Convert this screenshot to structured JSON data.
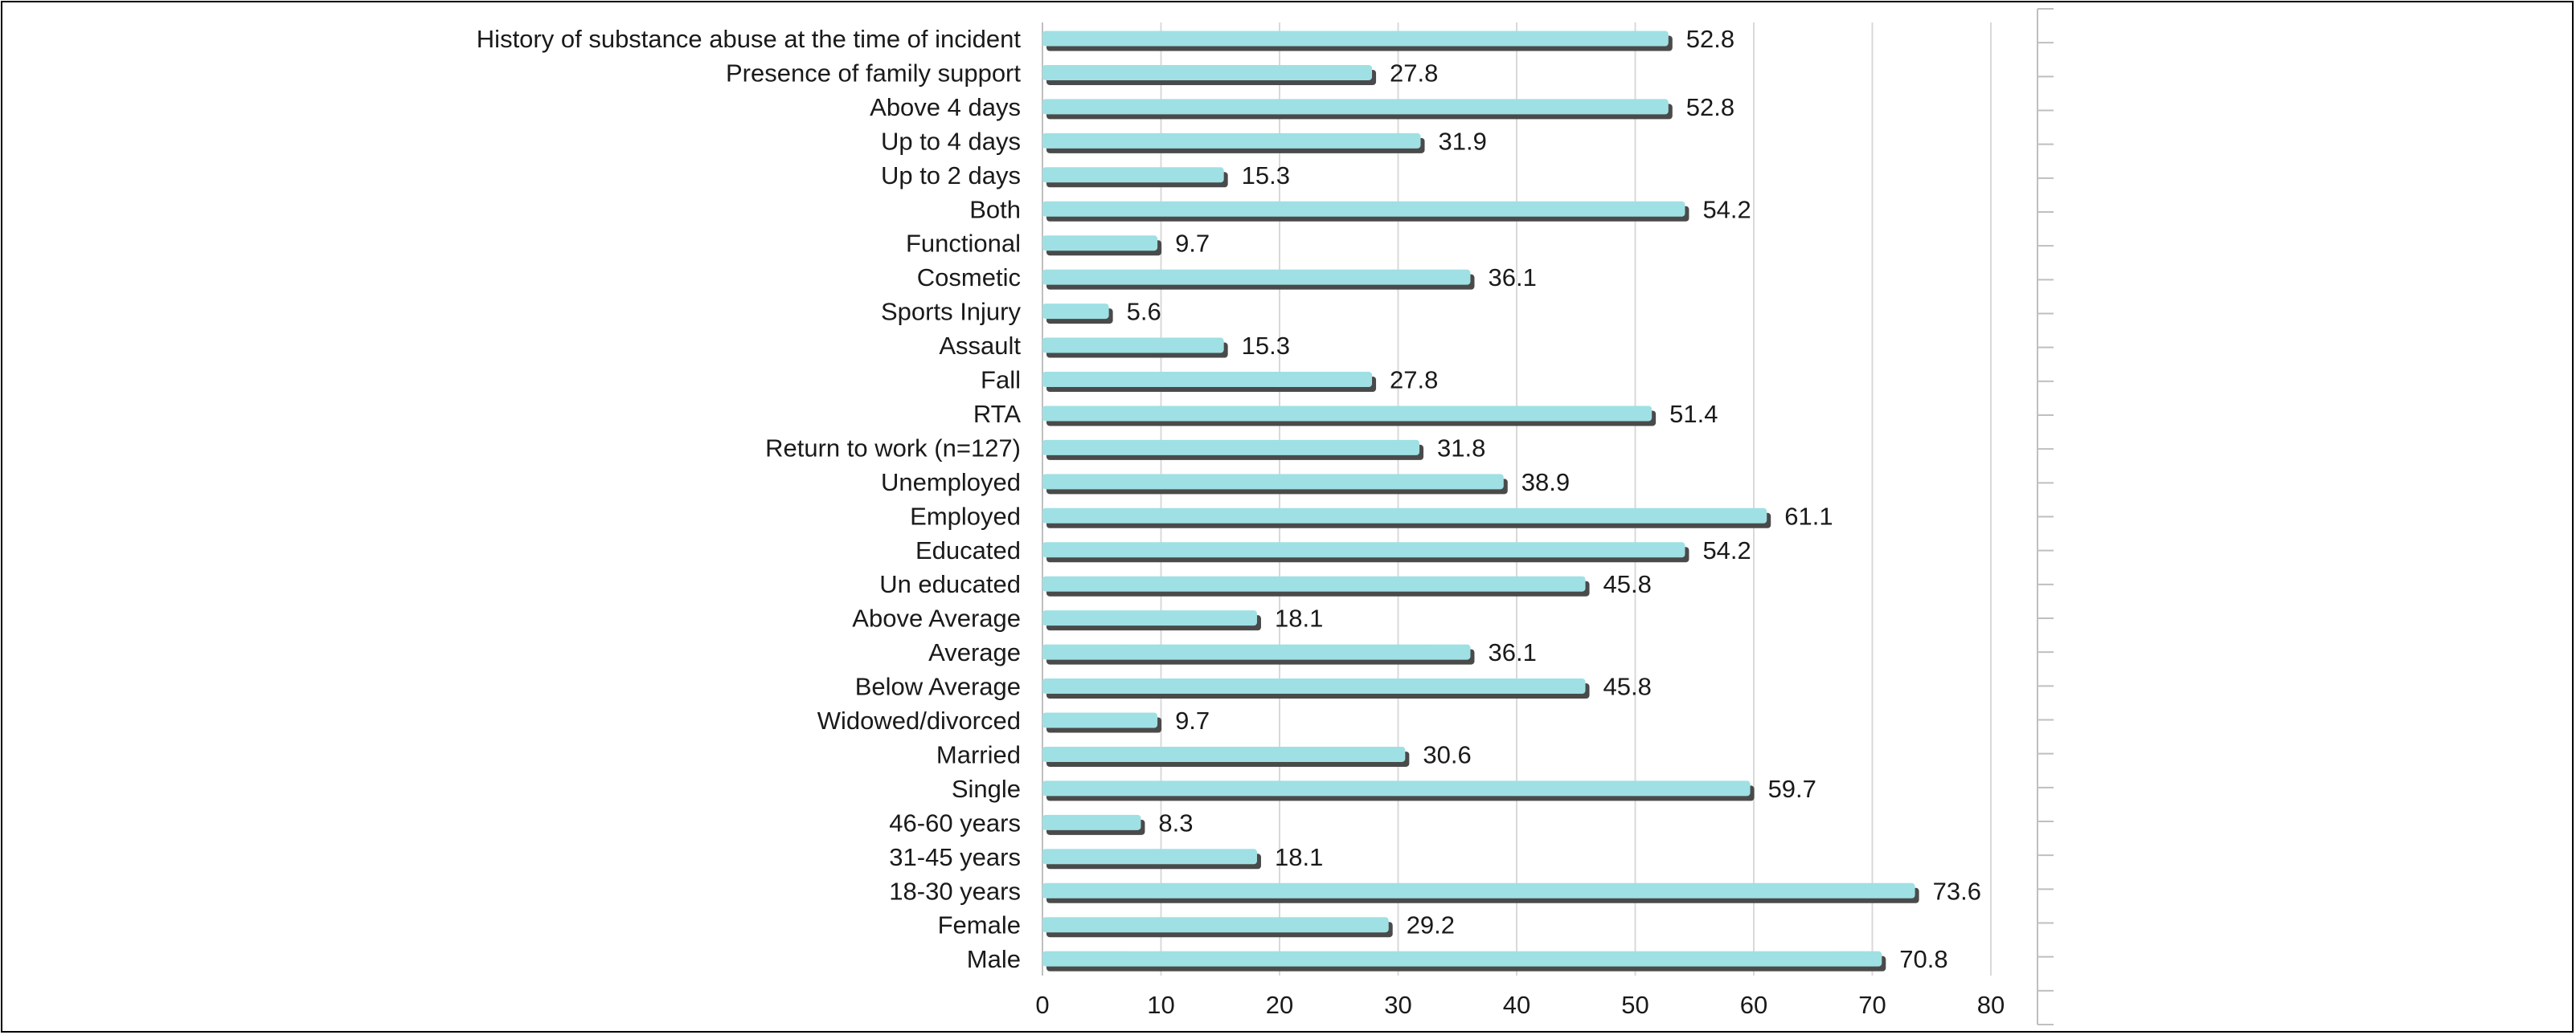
{
  "chart_data": {
    "type": "bar",
    "orientation": "horizontal",
    "categories": [
      "History of substance abuse at the time of incident",
      "Presence of family support",
      "Above 4 days",
      "Up to 4 days",
      "Up to 2 days",
      "Both",
      "Functional",
      "Cosmetic",
      "Sports Injury",
      "Assault",
      "Fall",
      "RTA",
      "Return to work (n=127)",
      "Unemployed",
      "Employed",
      "Educated",
      "Un educated",
      "Above Average",
      "Average",
      "Below Average",
      "Widowed/divorced",
      "Married",
      "Single",
      "46-60 years",
      "31-45 years",
      "18-30 years",
      "Female",
      "Male"
    ],
    "values": [
      52.8,
      27.8,
      52.8,
      31.9,
      15.3,
      54.2,
      9.7,
      36.1,
      5.6,
      15.3,
      27.8,
      51.4,
      31.8,
      38.9,
      61.1,
      54.2,
      45.8,
      18.1,
      36.1,
      45.8,
      9.7,
      30.6,
      59.7,
      8.3,
      18.1,
      73.6,
      29.2,
      70.8
    ],
    "value_labels": [
      "52.8",
      "27.8",
      "52.8",
      "31.9",
      "15.3",
      "54.2",
      "9.7",
      "36.1",
      "5.6",
      "15.3",
      "27.8",
      "51.4",
      "31.8",
      "38.9",
      "61.1",
      "54.2",
      "45.8",
      "18.1",
      "36.1",
      "45.8",
      "9.7",
      "30.6",
      "59.7",
      "8.3",
      "18.1",
      "73.6",
      "29.2",
      "70.8"
    ],
    "xticks": [
      "0",
      "10",
      "20",
      "30",
      "40",
      "50",
      "60",
      "70",
      "80"
    ],
    "xlim": [
      0,
      80
    ],
    "title": "",
    "xlabel": "",
    "ylabel": "",
    "grid": "vertical",
    "legend": "none",
    "bar_color": "#9fe0e4",
    "bar_shadow_color": "#4a4a4a"
  }
}
